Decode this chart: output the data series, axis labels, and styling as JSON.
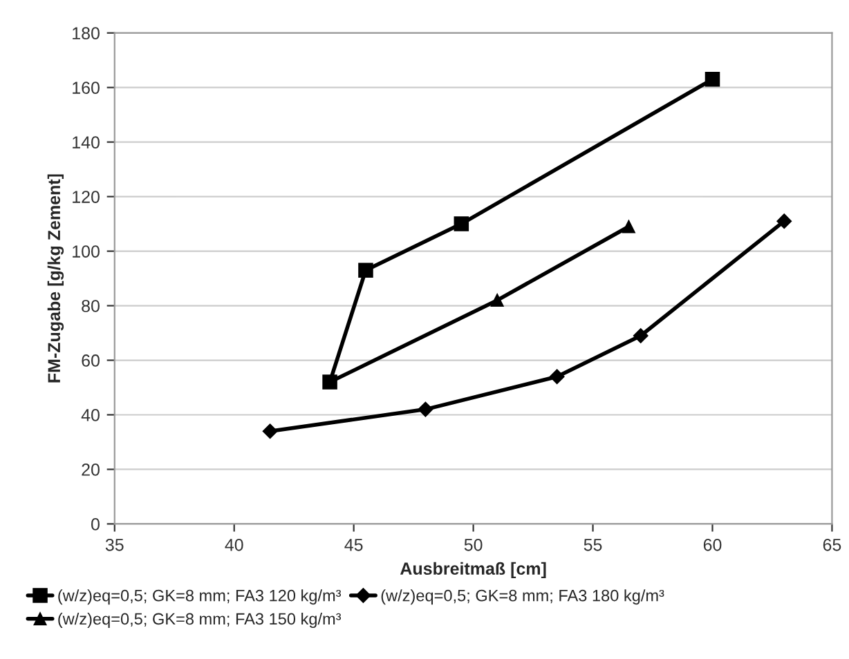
{
  "chart_data": {
    "type": "line",
    "xlabel": "Ausbreitmaß [cm]",
    "ylabel": "FM-Zugabe [g/kg Zement]",
    "xlim": [
      35,
      65
    ],
    "xticks": [
      35,
      40,
      45,
      50,
      55,
      60,
      65
    ],
    "ylim": [
      0,
      180
    ],
    "yticks": [
      0,
      20,
      40,
      60,
      80,
      100,
      120,
      140,
      160,
      180
    ],
    "grid": "y",
    "legend": "bottom",
    "series": [
      {
        "name": "(w/z)eq=0,5; GK=8 mm; FA3 120 kg/m³",
        "color": "#000000",
        "marker": "square",
        "x": [
          44,
          45.5,
          49.5,
          60
        ],
        "values": [
          52,
          93,
          110,
          163
        ]
      },
      {
        "name": "(w/z)eq=0,5; GK=8 mm; FA3 150 kg/m³",
        "color": "#000000",
        "marker": "triangle",
        "x": [
          44,
          51,
          56.5
        ],
        "values": [
          52,
          82,
          109
        ]
      },
      {
        "name": "(w/z)eq=0,5; GK=8 mm; FA3 180 kg/m³",
        "color": "#000000",
        "marker": "diamond",
        "x": [
          41.5,
          48,
          53.5,
          57,
          63
        ],
        "values": [
          34,
          42,
          54,
          69,
          111
        ]
      }
    ]
  }
}
